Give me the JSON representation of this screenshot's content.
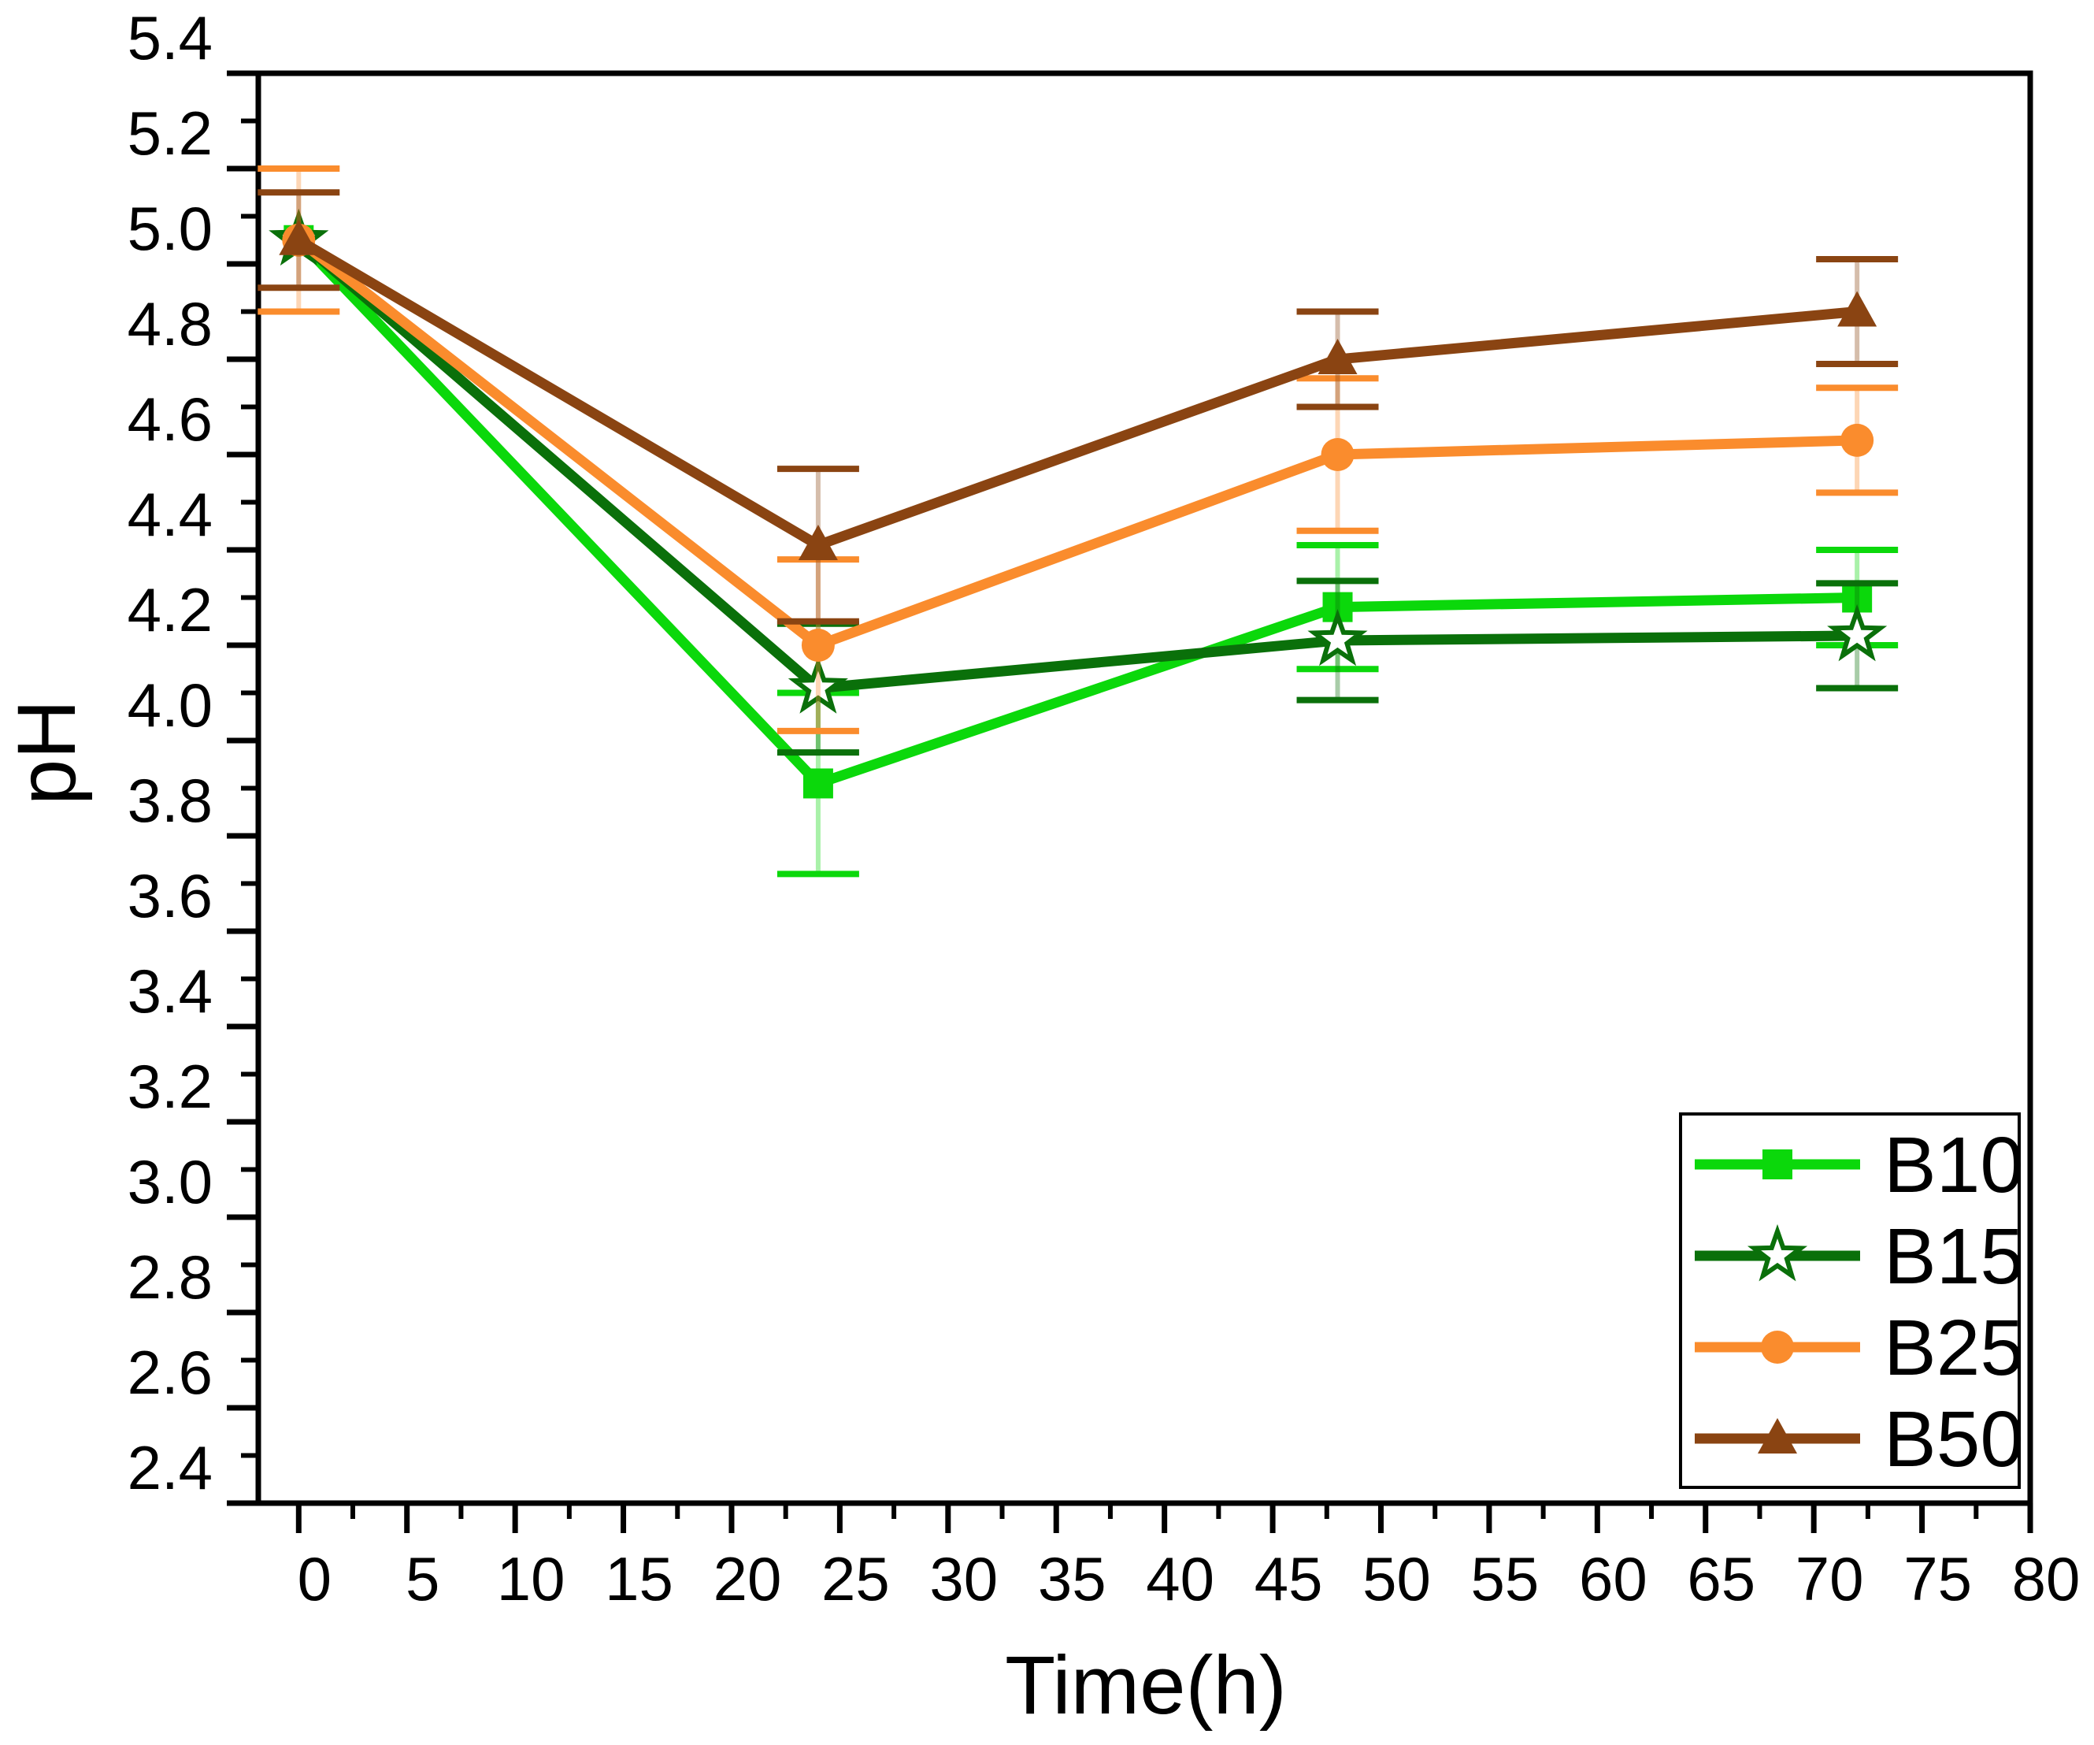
{
  "figure": {
    "background": "#ffffff",
    "axis_color": "#000000"
  },
  "chart_data": {
    "type": "line",
    "title": "",
    "xlabel": "Time(h)",
    "ylabel": "pH",
    "grid": false,
    "legend_position": "lower-right",
    "xlim": [
      -2,
      80
    ],
    "ylim": [
      2.4,
      5.4
    ],
    "x_major_tick_step": 5,
    "x_minor_tick_step": 2.5,
    "y_major_tick_step": 0.2,
    "y_minor_tick_step": 0.1,
    "x_tick_labels": [
      "0",
      "5",
      "10",
      "15",
      "20",
      "25",
      "30",
      "35",
      "40",
      "45",
      "50",
      "55",
      "60",
      "65",
      "70",
      "75",
      "80"
    ],
    "y_tick_labels": [
      "5.4",
      "5.2",
      "5.0",
      "4.8",
      "4.6",
      "4.4",
      "4.2",
      "4.0",
      "3.8",
      "3.6",
      "3.4",
      "3.2",
      "3.0",
      "2.8",
      "2.6",
      "2.4"
    ],
    "x": [
      0,
      24,
      48,
      72
    ],
    "series": [
      {
        "name": "B10",
        "color": "#0bd80b",
        "marker": "filled-square",
        "values": [
          5.05,
          3.91,
          4.28,
          4.3
        ],
        "errors": [
          0,
          0.19,
          0.13,
          0.1
        ]
      },
      {
        "name": "B15",
        "color": "#0a700a",
        "marker": "open-star",
        "values": [
          5.05,
          4.11,
          4.21,
          4.22
        ],
        "errors": [
          0,
          0.135,
          0.125,
          0.11
        ]
      },
      {
        "name": "B25",
        "color": "#fa8c2d",
        "marker": "filled-circle",
        "values": [
          5.05,
          4.2,
          4.6,
          4.63
        ],
        "errors": [
          0.15,
          0.18,
          0.16,
          0.11
        ]
      },
      {
        "name": "B50",
        "color": "#8a4412",
        "marker": "filled-triangle",
        "values": [
          5.05,
          4.41,
          4.8,
          4.9
        ],
        "errors": [
          0.1,
          0.16,
          0.1,
          0.11
        ]
      }
    ],
    "legend_labels": [
      "B10",
      "B15",
      "B25",
      "B50"
    ]
  }
}
